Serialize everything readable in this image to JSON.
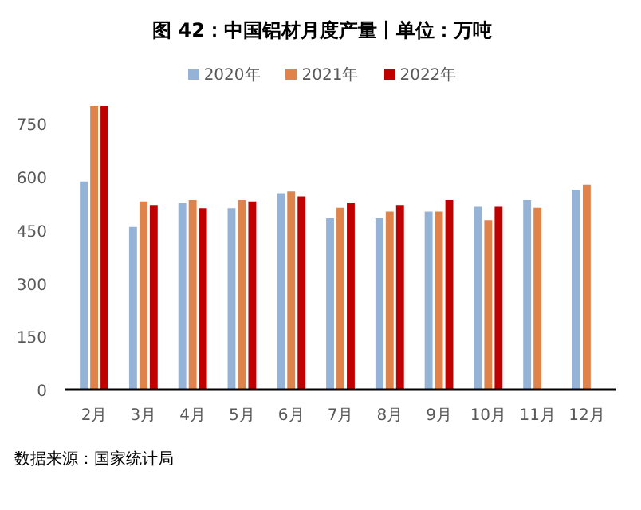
{
  "chart_data": {
    "type": "bar",
    "title": "图  42：中国铝材月度产量丨单位：万吨",
    "categories": [
      "2月",
      "3月",
      "4月",
      "5月",
      "6月",
      "7月",
      "8月",
      "9月",
      "10月",
      "11月",
      "12月"
    ],
    "series": [
      {
        "name": "2020年",
        "color": "#95b3d7",
        "values": [
          587,
          459,
          526,
          512,
          554,
          483,
          483,
          502,
          516,
          535,
          564
        ]
      },
      {
        "name": "2021年",
        "color": "#e0834a",
        "values": [
          800,
          531,
          535,
          535,
          559,
          513,
          502,
          502,
          478,
          513,
          578
        ]
      },
      {
        "name": "2022年",
        "color": "#c00000",
        "values": [
          800,
          521,
          512,
          531,
          545,
          526,
          521,
          535,
          516,
          null,
          null
        ]
      }
    ],
    "ylim": [
      0,
      800
    ],
    "yticks": [
      0,
      150,
      300,
      450,
      600,
      750
    ],
    "grid": false,
    "legend": "top",
    "annotations": [
      "数据来源：国家统计局"
    ]
  }
}
